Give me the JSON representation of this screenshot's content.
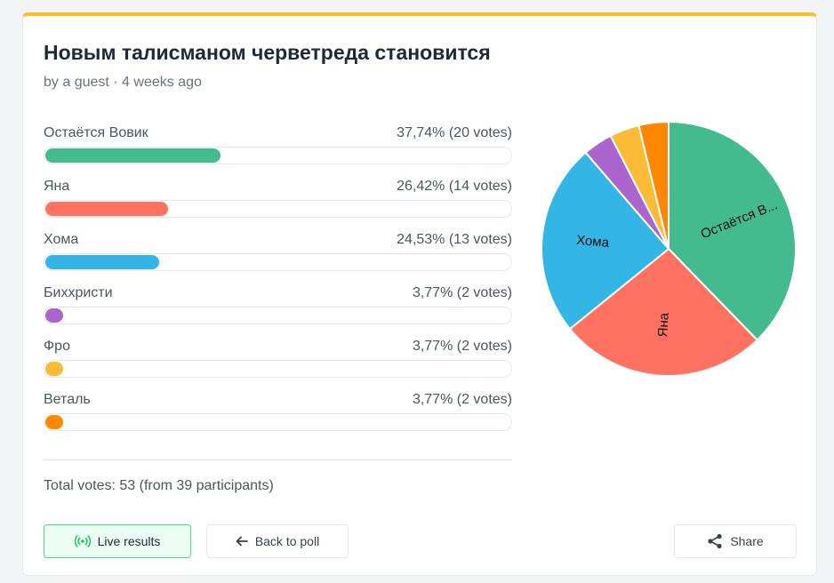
{
  "poll": {
    "title": "Новым талисманом черветреда становится",
    "meta": "by a guest · 4 weeks ago",
    "total": "Total votes: 53 (from 39 participants)"
  },
  "options": [
    {
      "label": "Остаётся Вовик",
      "value_text": "37,74% (20 votes)",
      "percent": 37.74,
      "color": "#43bb8f"
    },
    {
      "label": "Яна",
      "value_text": "26,42% (14 votes)",
      "percent": 26.42,
      "color": "#ff7262"
    },
    {
      "label": "Хома",
      "value_text": "24,53% (13 votes)",
      "percent": 24.53,
      "color": "#33b5e5"
    },
    {
      "label": "Биххристи",
      "value_text": "3,77% (2 votes)",
      "percent": 3.77,
      "color": "#aa66cc"
    },
    {
      "label": "Фро",
      "value_text": "3,77% (2 votes)",
      "percent": 3.77,
      "color": "#fbbb36"
    },
    {
      "label": "Веталь",
      "value_text": "3,77% (2 votes)",
      "percent": 3.77,
      "color": "#ff8800"
    }
  ],
  "buttons": {
    "live": "Live results",
    "back": "Back to poll",
    "share": "Share"
  },
  "icons": {
    "live": "broadcast-icon",
    "back": "arrow-left-icon",
    "share": "share-icon"
  },
  "chart_data": {
    "type": "pie",
    "categories": [
      "Остаётся Вовик",
      "Яна",
      "Хома",
      "Биххристи",
      "Фро",
      "Веталь"
    ],
    "values": [
      20,
      14,
      13,
      2,
      2,
      2
    ],
    "slice_labels": [
      "Остаётся В...",
      "Яна",
      "Хома",
      "",
      "",
      ""
    ],
    "colors": [
      "#43bb8f",
      "#ff7262",
      "#33b5e5",
      "#aa66cc",
      "#fbbb36",
      "#ff8800"
    ]
  }
}
